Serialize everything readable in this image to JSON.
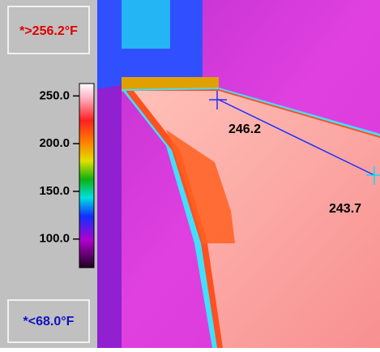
{
  "max_label": "*>256.2°F",
  "min_label": "*<68.0°F",
  "scale": {
    "range": [
      70,
      263
    ],
    "ticks": [
      {
        "value": 250,
        "label": "250.0"
      },
      {
        "value": 200,
        "label": "200.0"
      },
      {
        "value": 150,
        "label": "150.0"
      },
      {
        "value": 100,
        "label": "100.0"
      }
    ]
  },
  "spots": [
    {
      "label": "246.2"
    },
    {
      "label": "243.7"
    }
  ]
}
